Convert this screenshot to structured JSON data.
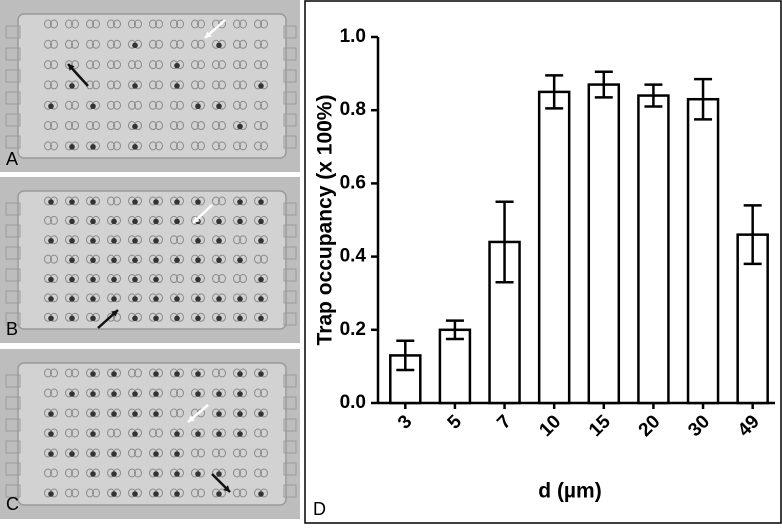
{
  "panel_labels": [
    "A",
    "B",
    "C",
    "D"
  ],
  "chart_data": {
    "type": "bar",
    "ylabel": "Trap occupancy (x 100%)",
    "xlabel": "d (µm)",
    "categories": [
      "3",
      "5",
      "7",
      "10",
      "15",
      "20",
      "30",
      "49"
    ],
    "values": [
      0.13,
      0.2,
      0.44,
      0.85,
      0.87,
      0.84,
      0.83,
      0.46
    ],
    "errors": [
      0.04,
      0.025,
      0.11,
      0.045,
      0.035,
      0.03,
      0.055,
      0.08
    ],
    "color": "#ffffff",
    "ylim": [
      0,
      1.0
    ],
    "yticks": [
      {
        "value": 0,
        "label": "0.0"
      },
      0.2,
      0.4,
      0.6,
      0.8,
      {
        "value": 1.0,
        "label": "1.0"
      }
    ]
  }
}
